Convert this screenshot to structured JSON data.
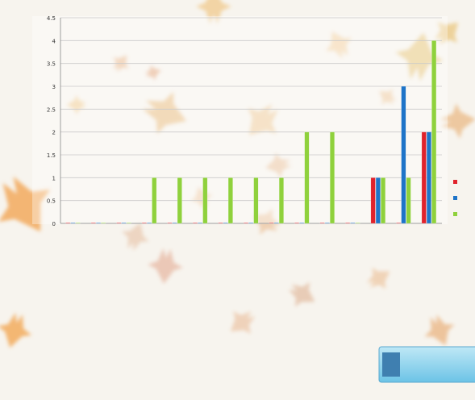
{
  "chart_data": {
    "type": "bar",
    "ylim": [
      0,
      4.5
    ],
    "yticks": [
      "0",
      "0.5",
      "1",
      "1.5",
      "2",
      "2.5",
      "3",
      "3.5",
      "4",
      "4.5"
    ],
    "grid": true,
    "legend": "right",
    "categories": [
      "",
      "",
      "",
      "",
      "",
      "",
      "",
      "",
      "",
      "",
      "",
      "",
      "",
      "",
      ""
    ],
    "series": [
      {
        "name": "",
        "color": "#e0222b",
        "values": [
          0,
          0,
          0,
          0,
          0,
          0,
          0,
          0,
          0,
          0,
          0,
          0,
          1,
          0,
          2
        ]
      },
      {
        "name": "",
        "color": "#1e74c8",
        "values": [
          0,
          0,
          0,
          0,
          0,
          0,
          0,
          0,
          0,
          0,
          0,
          0,
          1,
          3,
          2
        ]
      },
      {
        "name": "",
        "color": "#8fd13c",
        "values": [
          0,
          0,
          0,
          1,
          1,
          1,
          1,
          1,
          1,
          2,
          2,
          0,
          1,
          1,
          4
        ]
      }
    ]
  },
  "banner": {
    "text_line1": "",
    "text_line2": ""
  }
}
